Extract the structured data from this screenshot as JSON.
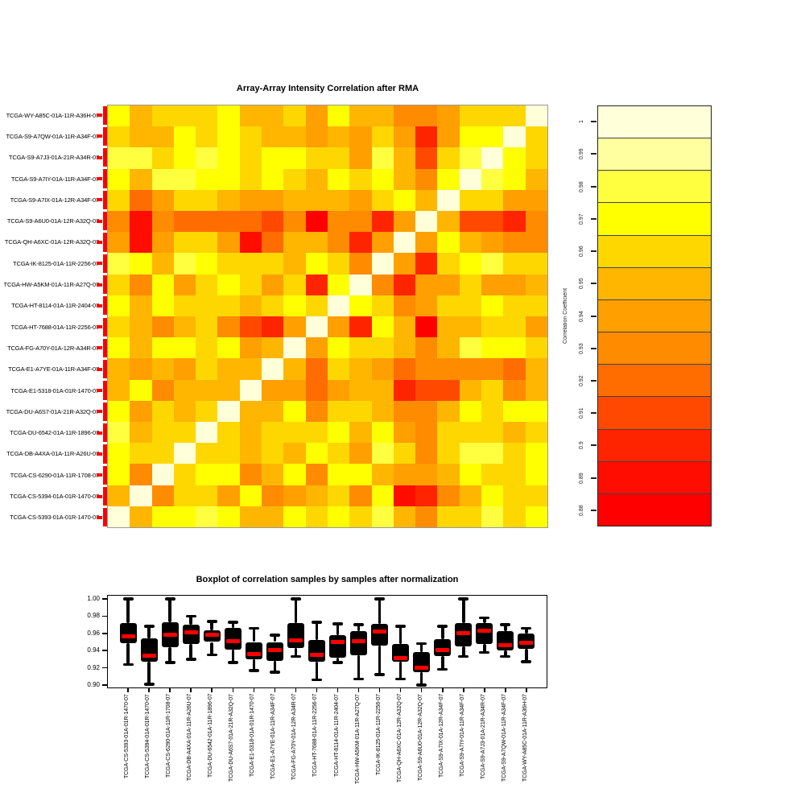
{
  "heatmap": {
    "row_marker_color": "#FF0000"
  },
  "legend": {
    "axis_label": "Correlation Coefficient",
    "ticks": [
      "1",
      "0.99",
      "0.98",
      "0.97",
      "0.96",
      "0.95",
      "0.94",
      "0.93",
      "0.92",
      "0.91",
      "0.9",
      "0.89",
      "0.88"
    ],
    "colors_top_to_bottom": [
      "#FFFFD9",
      "#FFFF9F",
      "#FFFF40",
      "#FFFF00",
      "#FFD700",
      "#FFB600",
      "#FF9F00",
      "#FF8B00",
      "#FF6D00",
      "#FF4900",
      "#FF2400",
      "#FF0D00",
      "#FF0000"
    ]
  },
  "boxplot": {
    "box_fill": "#000000",
    "median_color": "#FF0000",
    "y_tick_labels": [
      "1.00",
      "0.98",
      "0.96",
      "0.94",
      "0.92",
      "0.90"
    ]
  },
  "chart_data": [
    {
      "type": "heatmap",
      "title": "Array-Array Intensity Correlation after RMA",
      "rows_top_to_bottom": [
        "TCGA-WY-A85C-01A-11R-A36H-07",
        "TCGA-S9-A7QW-01A-11R-A34F-07",
        "TCGA-S9-A7J3-01A-21R-A34R-07",
        "TCGA-S9-A7IY-01A-11R-A34F-07",
        "TCGA-S9-A7IX-01A-12R-A34F-07",
        "TCGA-S9-A6U0-01A-12R-A32Q-07",
        "TCGA-QH-A6XC-01A-12R-A32Q-07",
        "TCGA-IK-8125-01A-11R-2256-07",
        "TCGA-HW-A5KM-01A-11R-A27Q-07",
        "TCGA-HT-8114-01A-11R-2404-07",
        "TCGA-HT-7688-01A-11R-2256-07",
        "TCGA-FG-A70Y-01A-12R-A34R-07",
        "TCGA-E1-A7YE-01A-11R-A34F-07",
        "TCGA-E1-5318-01A-01R-1470-07",
        "TCGA-DU-A6S7-01A-21R-A32Q-07",
        "TCGA-DU-6542-01A-11R-1896-07",
        "TCGA-DB-A4XA-01A-11R-A26U-07",
        "TCGA-CS-6290-01A-11R-1708-07",
        "TCGA-CS-5394-01A-01R-1470-07",
        "TCGA-CS-5393-01A-01R-1470-07"
      ],
      "columns_left_to_right": [
        "TCGA-CS-5393-01A-01R-1470-07",
        "TCGA-CS-5394-01A-01R-1470-07",
        "TCGA-CS-6290-01A-11R-1708-07",
        "TCGA-DB-A4XA-01A-11R-A26U-07",
        "TCGA-DU-6542-01A-11R-1896-07",
        "TCGA-DU-A6S7-01A-21R-A32Q-07",
        "TCGA-E1-5318-01A-01R-1470-07",
        "TCGA-E1-A7YE-01A-11R-A34F-07",
        "TCGA-FG-A70Y-01A-12R-A34R-07",
        "TCGA-HT-7688-01A-11R-2256-07",
        "TCGA-HT-8114-01A-11R-2404-07",
        "TCGA-HW-A5KM-01A-11R-A27Q-07",
        "TCGA-IK-8125-01A-11R-2256-07",
        "TCGA-QH-A6XC-01A-12R-A32Q-07",
        "TCGA-S9-A6U0-01A-12R-A32Q-07",
        "TCGA-S9-A7IX-01A-12R-A34F-07",
        "TCGA-S9-A7IY-01A-11R-A34F-07",
        "TCGA-S9-A7J3-01A-21R-A34R-07",
        "TCGA-S9-A7QW-01A-11R-A34F-07",
        "TCGA-WY-A85C-01A-11R-A36H-07"
      ],
      "color_scale": {
        "min": 0.88,
        "max": 1.0,
        "step": 0.01,
        "colors_low_to_high": [
          "#FF0000",
          "#FF0D00",
          "#FF2400",
          "#FF4900",
          "#FF6D00",
          "#FF8B00",
          "#FF9F00",
          "#FFB600",
          "#FFD700",
          "#FFFF00",
          "#FFFF40",
          "#FFFF9F",
          "#FFFFD9"
        ]
      },
      "values": [
        [
          0.97,
          0.95,
          0.96,
          0.96,
          0.96,
          0.97,
          0.95,
          0.95,
          0.96,
          0.94,
          0.97,
          0.95,
          0.95,
          0.93,
          0.93,
          0.94,
          0.96,
          0.96,
          0.96,
          1.0
        ],
        [
          0.96,
          0.95,
          0.95,
          0.97,
          0.96,
          0.97,
          0.96,
          0.95,
          0.95,
          0.94,
          0.95,
          0.94,
          0.96,
          0.94,
          0.9,
          0.94,
          0.97,
          0.97,
          1.0,
          0.96
        ],
        [
          0.98,
          0.98,
          0.96,
          0.97,
          0.98,
          0.97,
          0.96,
          0.97,
          0.97,
          0.96,
          0.96,
          0.94,
          0.98,
          0.95,
          0.91,
          0.96,
          0.98,
          1.0,
          0.97,
          0.96
        ],
        [
          0.97,
          0.95,
          0.98,
          0.98,
          0.97,
          0.97,
          0.96,
          0.97,
          0.96,
          0.95,
          0.97,
          0.96,
          0.97,
          0.95,
          0.93,
          0.97,
          1.0,
          0.98,
          0.97,
          0.95
        ],
        [
          0.96,
          0.92,
          0.94,
          0.96,
          0.96,
          0.95,
          0.94,
          0.94,
          0.95,
          0.95,
          0.95,
          0.94,
          0.96,
          0.97,
          0.95,
          1.0,
          0.96,
          0.96,
          0.94,
          0.94
        ],
        [
          0.93,
          0.89,
          0.93,
          0.92,
          0.92,
          0.92,
          0.92,
          0.91,
          0.93,
          0.88,
          0.93,
          0.93,
          0.9,
          0.94,
          1.0,
          0.95,
          0.91,
          0.91,
          0.9,
          0.93
        ],
        [
          0.94,
          0.89,
          0.94,
          0.96,
          0.96,
          0.94,
          0.89,
          0.92,
          0.95,
          0.95,
          0.93,
          0.9,
          0.94,
          1.0,
          0.94,
          0.97,
          0.95,
          0.94,
          0.93,
          0.93
        ],
        [
          0.98,
          0.97,
          0.95,
          0.98,
          0.97,
          0.96,
          0.96,
          0.96,
          0.95,
          0.97,
          0.96,
          0.93,
          1.0,
          0.94,
          0.9,
          0.96,
          0.97,
          0.98,
          0.96,
          0.96
        ],
        [
          0.96,
          0.93,
          0.97,
          0.94,
          0.96,
          0.97,
          0.96,
          0.94,
          0.96,
          0.9,
          0.97,
          1.0,
          0.93,
          0.9,
          0.94,
          0.94,
          0.96,
          0.94,
          0.94,
          0.95
        ],
        [
          0.97,
          0.95,
          0.97,
          0.96,
          0.96,
          0.96,
          0.95,
          0.96,
          0.97,
          0.96,
          1.0,
          0.97,
          0.96,
          0.93,
          0.94,
          0.96,
          0.96,
          0.97,
          0.96,
          0.96
        ],
        [
          0.96,
          0.95,
          0.93,
          0.95,
          0.96,
          0.93,
          0.91,
          0.9,
          0.94,
          1.0,
          0.94,
          0.9,
          0.97,
          0.95,
          0.88,
          0.95,
          0.95,
          0.96,
          0.96,
          0.94
        ],
        [
          0.97,
          0.95,
          0.97,
          0.97,
          0.96,
          0.97,
          0.94,
          0.95,
          1.0,
          0.94,
          0.97,
          0.96,
          0.96,
          0.95,
          0.93,
          0.95,
          0.98,
          0.97,
          0.97,
          0.96
        ],
        [
          0.95,
          0.94,
          0.95,
          0.94,
          0.96,
          0.95,
          0.95,
          1.0,
          0.95,
          0.92,
          0.96,
          0.95,
          0.94,
          0.92,
          0.93,
          0.93,
          0.93,
          0.93,
          0.92,
          0.95
        ],
        [
          0.95,
          0.97,
          0.93,
          0.95,
          0.95,
          0.95,
          1.0,
          0.94,
          0.94,
          0.92,
          0.94,
          0.95,
          0.95,
          0.9,
          0.91,
          0.91,
          0.95,
          0.96,
          0.93,
          0.95
        ],
        [
          0.97,
          0.94,
          0.96,
          0.95,
          0.96,
          1.0,
          0.95,
          0.95,
          0.97,
          0.93,
          0.96,
          0.96,
          0.95,
          0.93,
          0.93,
          0.95,
          0.97,
          0.96,
          0.97,
          0.97
        ],
        [
          0.98,
          0.95,
          0.96,
          0.96,
          1.0,
          0.96,
          0.95,
          0.96,
          0.96,
          0.96,
          0.97,
          0.95,
          0.97,
          0.94,
          0.93,
          0.96,
          0.96,
          0.96,
          0.95,
          0.96
        ],
        [
          0.97,
          0.96,
          0.96,
          1.0,
          0.96,
          0.96,
          0.95,
          0.96,
          0.95,
          0.97,
          0.96,
          0.94,
          0.98,
          0.96,
          0.93,
          0.96,
          0.98,
          0.98,
          0.96,
          0.97
        ],
        [
          0.97,
          0.93,
          1.0,
          0.96,
          0.97,
          0.97,
          0.93,
          0.95,
          0.97,
          0.93,
          0.97,
          0.97,
          0.95,
          0.94,
          0.94,
          0.95,
          0.97,
          0.96,
          0.96,
          0.97
        ],
        [
          0.95,
          1.0,
          0.93,
          0.96,
          0.96,
          0.94,
          0.97,
          0.93,
          0.94,
          0.95,
          0.96,
          0.93,
          0.97,
          0.89,
          0.9,
          0.93,
          0.95,
          0.97,
          0.96,
          0.96
        ],
        [
          1.0,
          0.95,
          0.97,
          0.97,
          0.98,
          0.97,
          0.95,
          0.95,
          0.97,
          0.96,
          0.97,
          0.96,
          0.98,
          0.95,
          0.93,
          0.96,
          0.96,
          0.98,
          0.96,
          0.97
        ]
      ]
    },
    {
      "type": "boxplot",
      "title": "Boxplot of correlation samples by samples after normalization",
      "categories": [
        "TCGA-CS-5393-01A-01R-1470-07",
        "TCGA-CS-5394-01A-01R-1470-07",
        "TCGA-CS-6290-01A-11R-1708-07",
        "TCGA-DB-A4XA-01A-11R-A26U-07",
        "TCGA-DU-6542-01A-11R-1896-07",
        "TCGA-DU-A6S7-01A-21R-A32Q-07",
        "TCGA-E1-5318-01A-01R-1470-07",
        "TCGA-E1-A7YE-01A-11R-A34F-07",
        "TCGA-FG-A70Y-01A-12R-A34R-07",
        "TCGA-HT-7688-01A-11R-2256-07",
        "TCGA-HT-8114-01A-11R-2404-07",
        "TCGA-HW-A5KM-01A-11R-A27Q-07",
        "TCGA-IK-8125-01A-11R-2256-07",
        "TCGA-QH-A6XC-01A-12R-A32Q-07",
        "TCGA-S9-A6U0-01A-12R-A32Q-07",
        "TCGA-S9-A7IX-01A-12R-A34F-07",
        "TCGA-S9-A7IY-01A-11R-A34F-07",
        "TCGA-S9-A7J3-01A-21R-A34R-07",
        "TCGA-S9-A7QW-01A-11R-A34F-07",
        "TCGA-WY-A85C-01A-11R-A36H-07"
      ],
      "stats_format": [
        "whisker_low",
        "q1",
        "median",
        "q3",
        "whisker_high"
      ],
      "stats": [
        [
          0.924,
          0.949,
          0.957,
          0.972,
          1.0
        ],
        [
          0.901,
          0.927,
          0.934,
          0.954,
          0.968
        ],
        [
          0.926,
          0.944,
          0.958,
          0.973,
          1.0
        ],
        [
          0.93,
          0.948,
          0.961,
          0.97,
          0.98
        ],
        [
          0.935,
          0.95,
          0.958,
          0.964,
          0.974
        ],
        [
          0.926,
          0.941,
          0.951,
          0.966,
          0.973
        ],
        [
          0.917,
          0.93,
          0.936,
          0.95,
          0.966
        ],
        [
          0.915,
          0.928,
          0.941,
          0.95,
          0.958
        ],
        [
          0.933,
          0.943,
          0.952,
          0.972,
          1.0
        ],
        [
          0.906,
          0.927,
          0.935,
          0.952,
          0.973
        ],
        [
          0.926,
          0.932,
          0.95,
          0.958,
          0.971
        ],
        [
          0.907,
          0.935,
          0.951,
          0.963,
          0.97
        ],
        [
          0.912,
          0.946,
          0.962,
          0.971,
          1.0
        ],
        [
          0.907,
          0.927,
          0.931,
          0.948,
          0.968
        ],
        [
          0.9,
          0.915,
          0.92,
          0.938,
          0.948
        ],
        [
          0.918,
          0.934,
          0.941,
          0.953,
          0.968
        ],
        [
          0.933,
          0.945,
          0.96,
          0.972,
          1.0
        ],
        [
          0.938,
          0.948,
          0.963,
          0.972,
          0.978
        ],
        [
          0.933,
          0.94,
          0.946,
          0.963,
          0.97
        ],
        [
          0.927,
          0.942,
          0.949,
          0.96,
          0.966
        ]
      ],
      "ylim": [
        0.9,
        1.0
      ],
      "y_ticks": [
        1.0,
        0.98,
        0.96,
        0.94,
        0.92,
        0.9
      ],
      "grid": false,
      "legend_position": "none"
    }
  ]
}
